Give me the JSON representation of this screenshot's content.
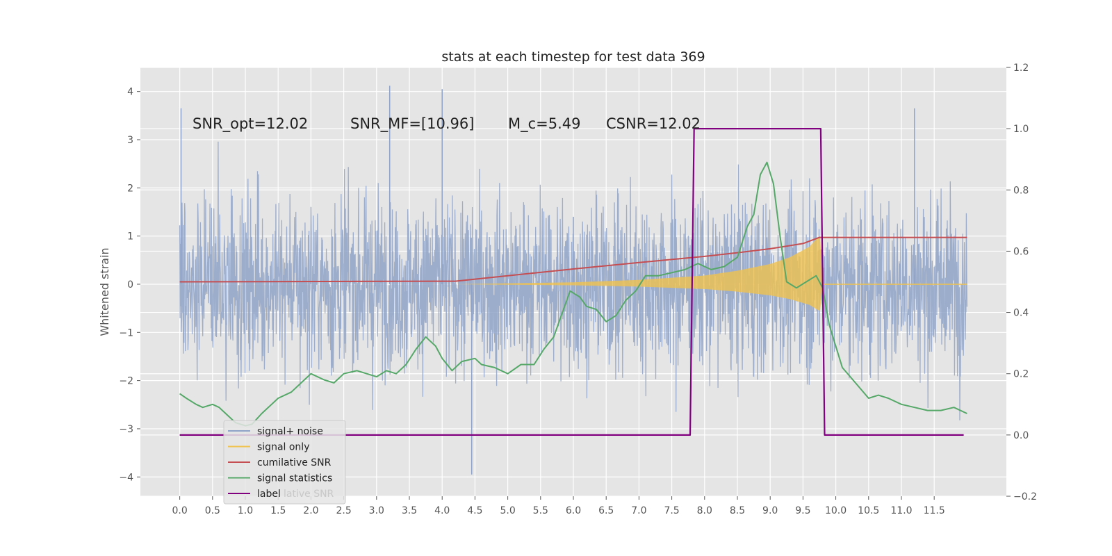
{
  "chart_data": {
    "type": "line",
    "title": "stats at each timestep for test data 369",
    "ylabel": "Whitened strain",
    "xlim": [
      -0.6,
      12.6
    ],
    "ylim": [
      -4.4,
      4.5
    ],
    "y2lim": [
      -0.2,
      1.2
    ],
    "xticks": [
      "0.0",
      "0.5",
      "1.0",
      "1.5",
      "2.0",
      "2.5",
      "3.0",
      "3.5",
      "4.0",
      "4.5",
      "5.0",
      "5.5",
      "6.0",
      "6.5",
      "7.0",
      "7.5",
      "8.0",
      "8.5",
      "9.0",
      "9.5",
      "10.0",
      "10.5",
      "11.0",
      "11.5"
    ],
    "xtick_values": [
      0,
      0.5,
      1,
      1.5,
      2,
      2.5,
      3,
      3.5,
      4,
      4.5,
      5,
      5.5,
      6,
      6.5,
      7,
      7.5,
      8,
      8.5,
      9,
      9.5,
      10,
      10.5,
      11,
      11.5
    ],
    "yticks": [
      "4",
      "3",
      "2",
      "1",
      "0",
      "−1",
      "−2",
      "−3",
      "−4"
    ],
    "ytick_values": [
      4,
      3,
      2,
      1,
      0,
      -1,
      -2,
      -3,
      -4
    ],
    "y2ticks": [
      "1.2",
      "1.0",
      "0.8",
      "0.6",
      "0.4",
      "0.2",
      "0.0",
      "−0.2"
    ],
    "y2tick_values": [
      1.2,
      1.0,
      0.8,
      0.6,
      0.4,
      0.2,
      0.0,
      -0.2
    ],
    "grid": true,
    "legend_position": "lower-left",
    "annotations": [
      {
        "id": "snr-opt",
        "text": "SNR_opt=12.02"
      },
      {
        "id": "snr-mf",
        "text": "SNR_MF=[10.96]"
      },
      {
        "id": "mc",
        "text": "M_c=5.49"
      },
      {
        "id": "csnr",
        "text": "CSNR=12.02"
      }
    ],
    "legend": [
      {
        "label": "signal+ noise",
        "color": "#8fa3c8"
      },
      {
        "label": "signal only",
        "color": "#f0c24f"
      },
      {
        "label": "cumilative SNR",
        "color": "#c44e52"
      },
      {
        "label": "signal statistics",
        "color": "#55a868"
      },
      {
        "label": "label",
        "color": "#800080"
      }
    ],
    "legend_ghost_text": "lative SNR",
    "series": [
      {
        "name": "signal+ noise",
        "axis": "left",
        "color": "#8fa3c8",
        "kind": "noise",
        "x_range": [
          0,
          12.0
        ],
        "spikes": [
          {
            "x": 0.02,
            "y": 3.65
          },
          {
            "x": 3.2,
            "y": 4.12
          },
          {
            "x": 4.0,
            "y": 4.05
          },
          {
            "x": 11.2,
            "y": 3.65
          },
          {
            "x": 4.45,
            "y": -3.95
          },
          {
            "x": 6.0,
            "y": 1.4
          }
        ]
      },
      {
        "name": "signal only",
        "axis": "left",
        "color": "#f0c24f",
        "kind": "envelope",
        "points": [
          [
            0,
            0
          ],
          [
            4.2,
            0
          ],
          [
            5,
            0.02
          ],
          [
            6,
            0.04
          ],
          [
            7,
            0.09
          ],
          [
            8,
            0.18
          ],
          [
            8.5,
            0.28
          ],
          [
            9,
            0.42
          ],
          [
            9.3,
            0.56
          ],
          [
            9.6,
            0.78
          ],
          [
            9.72,
            0.96
          ],
          [
            9.76,
            1.0
          ],
          [
            9.8,
            0.0
          ],
          [
            12,
            0.0
          ]
        ]
      },
      {
        "name": "cumilative SNR",
        "axis": "right",
        "color": "#c44e52",
        "points": [
          [
            0,
            0.5
          ],
          [
            4.2,
            0.502
          ],
          [
            5,
            0.52
          ],
          [
            6,
            0.542
          ],
          [
            7,
            0.563
          ],
          [
            8,
            0.583
          ],
          [
            8.5,
            0.595
          ],
          [
            9,
            0.608
          ],
          [
            9.5,
            0.625
          ],
          [
            9.75,
            0.645
          ],
          [
            12,
            0.645
          ]
        ]
      },
      {
        "name": "signal statistics",
        "axis": "right",
        "color": "#55a868",
        "points": [
          [
            0,
            0.135
          ],
          [
            0.1,
            0.12
          ],
          [
            0.25,
            0.1
          ],
          [
            0.35,
            0.09
          ],
          [
            0.5,
            0.1
          ],
          [
            0.6,
            0.09
          ],
          [
            0.7,
            0.07
          ],
          [
            0.85,
            0.04
          ],
          [
            1.0,
            0.03
          ],
          [
            1.1,
            0.035
          ],
          [
            1.25,
            0.07
          ],
          [
            1.4,
            0.1
          ],
          [
            1.5,
            0.12
          ],
          [
            1.7,
            0.14
          ],
          [
            1.9,
            0.18
          ],
          [
            2.0,
            0.2
          ],
          [
            2.2,
            0.18
          ],
          [
            2.35,
            0.17
          ],
          [
            2.5,
            0.2
          ],
          [
            2.7,
            0.21
          ],
          [
            2.85,
            0.2
          ],
          [
            3.0,
            0.19
          ],
          [
            3.15,
            0.21
          ],
          [
            3.3,
            0.2
          ],
          [
            3.45,
            0.23
          ],
          [
            3.6,
            0.28
          ],
          [
            3.75,
            0.32
          ],
          [
            3.9,
            0.29
          ],
          [
            4.0,
            0.25
          ],
          [
            4.15,
            0.21
          ],
          [
            4.3,
            0.24
          ],
          [
            4.5,
            0.25
          ],
          [
            4.6,
            0.23
          ],
          [
            4.8,
            0.22
          ],
          [
            5.0,
            0.2
          ],
          [
            5.2,
            0.23
          ],
          [
            5.4,
            0.23
          ],
          [
            5.55,
            0.28
          ],
          [
            5.7,
            0.32
          ],
          [
            5.8,
            0.38
          ],
          [
            5.95,
            0.47
          ],
          [
            6.1,
            0.45
          ],
          [
            6.2,
            0.42
          ],
          [
            6.35,
            0.41
          ],
          [
            6.5,
            0.37
          ],
          [
            6.65,
            0.39
          ],
          [
            6.8,
            0.44
          ],
          [
            6.95,
            0.47
          ],
          [
            7.1,
            0.52
          ],
          [
            7.3,
            0.52
          ],
          [
            7.5,
            0.53
          ],
          [
            7.7,
            0.54
          ],
          [
            7.9,
            0.56
          ],
          [
            8.1,
            0.54
          ],
          [
            8.3,
            0.55
          ],
          [
            8.5,
            0.58
          ],
          [
            8.65,
            0.68
          ],
          [
            8.75,
            0.72
          ],
          [
            8.85,
            0.85
          ],
          [
            8.95,
            0.89
          ],
          [
            9.05,
            0.82
          ],
          [
            9.15,
            0.65
          ],
          [
            9.25,
            0.5
          ],
          [
            9.4,
            0.48
          ],
          [
            9.55,
            0.5
          ],
          [
            9.7,
            0.52
          ],
          [
            9.8,
            0.48
          ],
          [
            9.9,
            0.36
          ],
          [
            10.1,
            0.22
          ],
          [
            10.3,
            0.17
          ],
          [
            10.5,
            0.12
          ],
          [
            10.65,
            0.13
          ],
          [
            10.8,
            0.12
          ],
          [
            11.0,
            0.1
          ],
          [
            11.2,
            0.09
          ],
          [
            11.4,
            0.08
          ],
          [
            11.6,
            0.08
          ],
          [
            11.8,
            0.09
          ],
          [
            12,
            0.07
          ]
        ]
      },
      {
        "name": "label",
        "axis": "right",
        "color": "#800080",
        "points": [
          [
            0,
            0.0
          ],
          [
            7.78,
            0.0
          ],
          [
            7.84,
            1.0
          ],
          [
            9.77,
            1.0
          ],
          [
            9.83,
            0.0
          ],
          [
            11.95,
            0.0
          ]
        ]
      }
    ]
  }
}
